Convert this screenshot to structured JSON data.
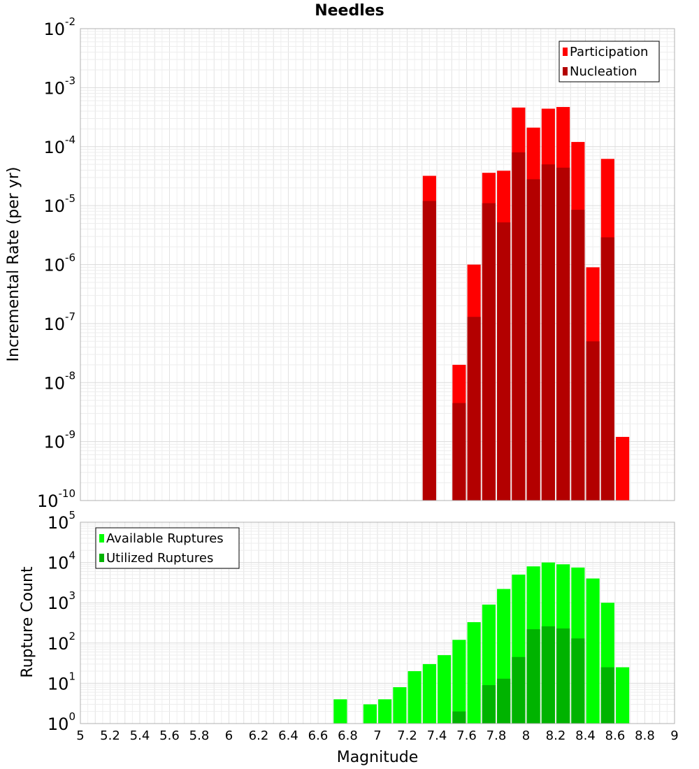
{
  "chart_data": [
    {
      "type": "bar",
      "title": "Needles",
      "ylabel": "Incremental Rate (per yr)",
      "yscale": "log",
      "ylim": [
        1e-10,
        0.01
      ],
      "xlim": [
        5,
        9
      ],
      "bar_width": 0.09,
      "legend": "top-right",
      "grid": true,
      "series": [
        {
          "name": "Participation",
          "color": "#ff0000",
          "x": [
            7.35,
            7.55,
            7.65,
            7.75,
            7.85,
            7.95,
            8.05,
            8.15,
            8.25,
            8.35,
            8.45,
            8.55,
            8.65
          ],
          "values": [
            3.2e-05,
            2e-08,
            1e-06,
            3.6e-05,
            3.9e-05,
            0.00046,
            0.00021,
            0.00044,
            0.00047,
            0.00012,
            9e-07,
            6.2e-05,
            1.2e-09
          ]
        },
        {
          "name": "Nucleation",
          "color": "#b30000",
          "x": [
            7.35,
            7.55,
            7.65,
            7.75,
            7.85,
            7.95,
            8.05,
            8.15,
            8.25,
            8.35,
            8.45,
            8.55
          ],
          "values": [
            1.2e-05,
            4.5e-09,
            1.3e-07,
            1.1e-05,
            5.2e-06,
            8e-05,
            2.8e-05,
            5e-05,
            4.4e-05,
            8.5e-06,
            5e-08,
            2.9e-06
          ]
        }
      ]
    },
    {
      "type": "bar",
      "ylabel": "Rupture Count",
      "xlabel": "Magnitude",
      "yscale": "log",
      "ylim": [
        1,
        100000.0
      ],
      "xlim": [
        5,
        9
      ],
      "xticks": [
        "5",
        "5.2",
        "5.4",
        "5.6",
        "5.8",
        "6",
        "6.2",
        "6.4",
        "6.6",
        "6.8",
        "7",
        "7.2",
        "7.4",
        "7.6",
        "7.8",
        "8",
        "8.2",
        "8.4",
        "8.6",
        "8.8",
        "9"
      ],
      "bar_width": 0.09,
      "legend": "top-left",
      "grid": true,
      "series": [
        {
          "name": "Available Ruptures",
          "color": "#00ff00",
          "x": [
            6.75,
            6.95,
            7.05,
            7.15,
            7.25,
            7.35,
            7.45,
            7.55,
            7.65,
            7.75,
            7.85,
            7.95,
            8.05,
            8.15,
            8.25,
            8.35,
            8.45,
            8.55,
            8.65
          ],
          "values": [
            4,
            3,
            4,
            8,
            20,
            30,
            50,
            120,
            330,
            900,
            2200,
            5000,
            8000,
            10000,
            9000,
            7500,
            4000,
            1000,
            25
          ]
        },
        {
          "name": "Utilized Ruptures",
          "color": "#00b300",
          "x": [
            7.35,
            7.55,
            7.65,
            7.75,
            7.85,
            7.95,
            8.05,
            8.15,
            8.25,
            8.35,
            8.45,
            8.55,
            8.65
          ],
          "values": [
            1,
            2,
            1,
            9,
            13,
            45,
            220,
            260,
            230,
            130,
            1,
            25,
            1
          ]
        }
      ]
    }
  ]
}
